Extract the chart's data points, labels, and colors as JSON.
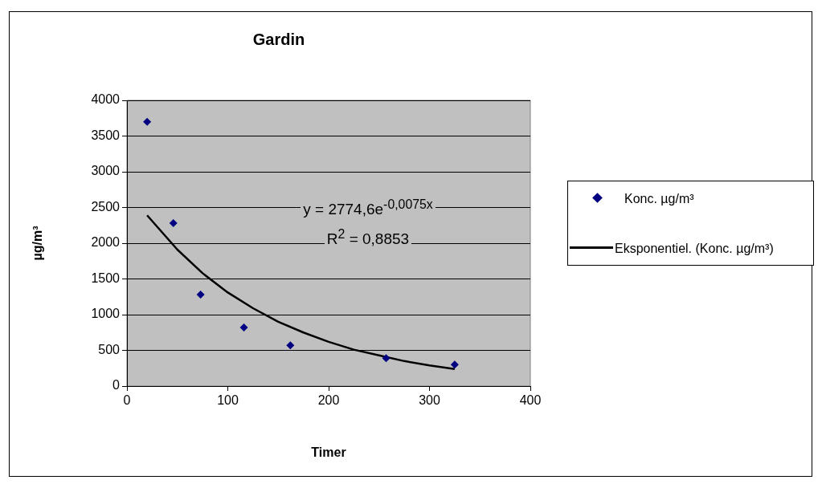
{
  "chart_data": {
    "type": "scatter",
    "title": "Gardin",
    "xlabel": "Timer",
    "ylabel": "µg/m³",
    "xlim": [
      0,
      400
    ],
    "xticks": [
      0,
      100,
      200,
      300,
      400
    ],
    "ylim": [
      0,
      4000
    ],
    "yticks": [
      0,
      500,
      1000,
      1500,
      2000,
      2500,
      3000,
      3500,
      4000
    ],
    "grid": "y",
    "legend": "right",
    "marker": "diamond",
    "series": [
      {
        "name": "Konc. µg/m³",
        "color": "#000080",
        "x": [
          20,
          46,
          73,
          116,
          162,
          257,
          325
        ],
        "values": [
          3700,
          2280,
          1280,
          820,
          570,
          390,
          300
        ]
      },
      {
        "name": "Eksponentiel. (Konc. µg/m³)",
        "type": "line",
        "color": "#000000",
        "line_style": "solid",
        "marker": "none",
        "x": [
          20,
          50,
          75,
          100,
          125,
          150,
          175,
          200,
          225,
          250,
          275,
          300,
          325
        ],
        "values": [
          2390,
          1910,
          1580,
          1310,
          1090,
          900,
          750,
          620,
          510,
          430,
          350,
          290,
          240
        ]
      }
    ],
    "annotations": [
      "y = 2774,6e$^{-0,0075x}$",
      "R$^{2}$ = 0,8853"
    ]
  }
}
